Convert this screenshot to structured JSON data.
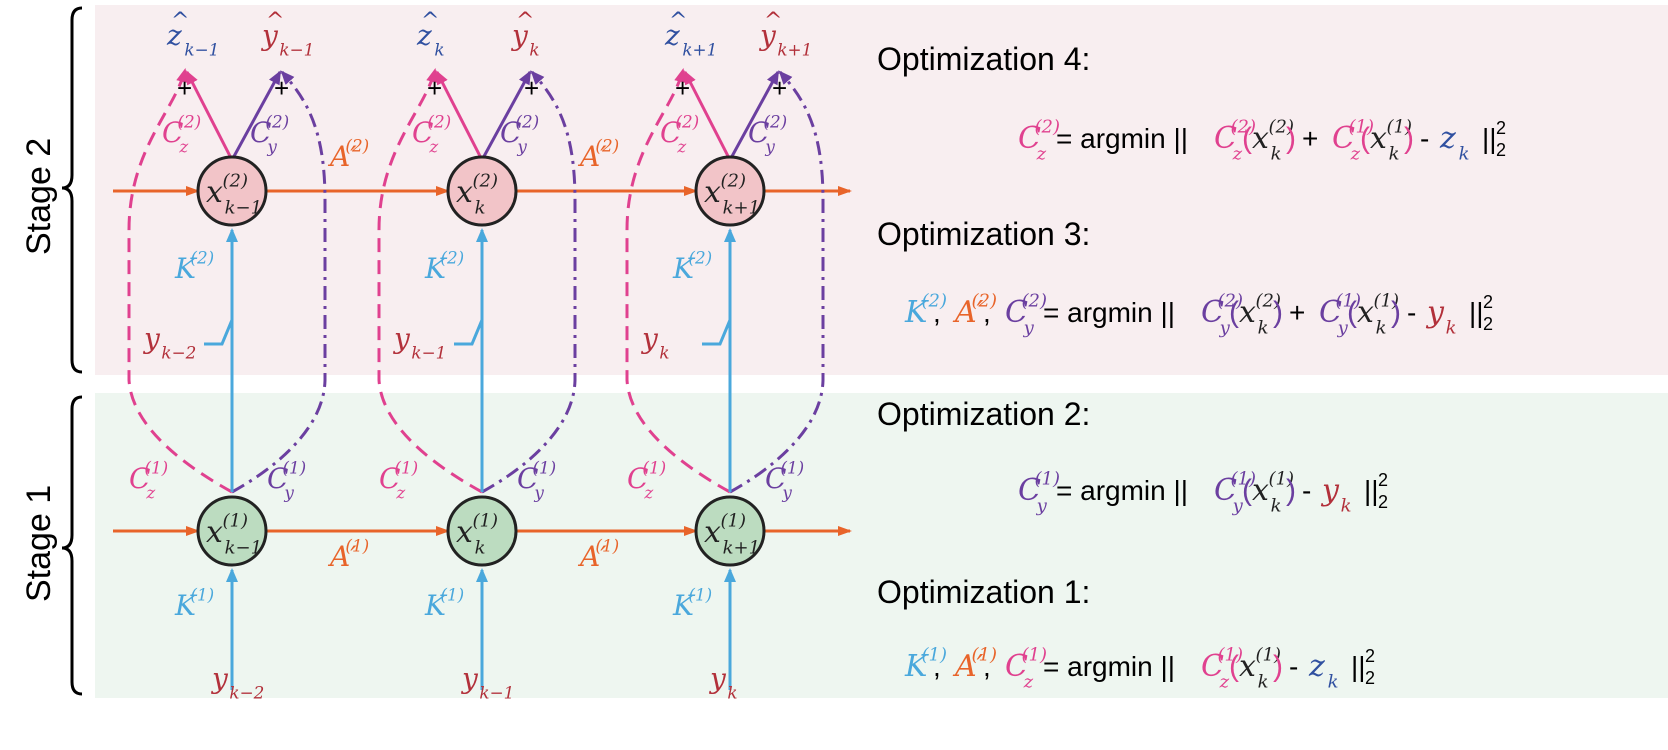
{
  "colors": {
    "pink": "#e0418f",
    "purple": "#6b3fa0",
    "blue": "#4aa8dc",
    "orange": "#e8642a",
    "red": "#b2303a",
    "navy": "#3050a0",
    "node_stage2": "#f2c4c8",
    "node_stage1": "#bcdcc0",
    "bg_stage2": "#f8eef0",
    "bg_stage1": "#eef6f0"
  },
  "stages": {
    "stage2": "Stage 2",
    "stage1": "Stage 1"
  },
  "columns": [
    {
      "sub": "k−1",
      "out_z": "z",
      "out_z_sub": "k−1",
      "out_y": "y",
      "out_y_sub": "k−1",
      "stage2_input": "y",
      "stage2_input_sub": "k−2",
      "stage1_input": "y",
      "stage1_input_sub": "k−2"
    },
    {
      "sub": "k",
      "out_z": "z",
      "out_z_sub": "k",
      "out_y": "y",
      "out_y_sub": "k",
      "stage2_input": "y",
      "stage2_input_sub": "k−1",
      "stage1_input": "y",
      "stage1_input_sub": "k−1"
    },
    {
      "sub": "k+1",
      "out_z": "z",
      "out_z_sub": "k+1",
      "out_y": "y",
      "out_y_sub": "k+1",
      "stage2_input": "y",
      "stage2_input_sub": "k",
      "stage1_input": "y",
      "stage1_input_sub": "k"
    }
  ],
  "symbols": {
    "state": "x",
    "sup2": "(2)",
    "sup1": "(1)",
    "Cz": "C",
    "Cy": "C",
    "K": "K",
    "A": "A′",
    "z_sub": "z",
    "y_sub": "y",
    "plus": "+",
    "hat": "^"
  },
  "optimizations": [
    {
      "title": "Optimization 4:",
      "lhs": [
        {
          "t": "C",
          "sub": "z",
          "sup": "(2)",
          "c": "pink"
        }
      ],
      "rhs": "= argmin || C_z^(2)(x_k^(2)) + C_z^(1)(x_k^(1)) - z_k ||_2^2"
    },
    {
      "title": "Optimization 3:",
      "lhs": [
        {
          "t": "K",
          "sup": "(2)",
          "c": "blue"
        },
        {
          "t": "A′",
          "sup": "(2)",
          "c": "orange"
        },
        {
          "t": "C",
          "sub": "y",
          "sup": "(2)",
          "c": "purple"
        }
      ],
      "rhs": "= argmin || C_y^(2)(x_k^(2)) + C_y^(1)(x_k^(1)) - y_k ||_2^2"
    },
    {
      "title": "Optimization 2:",
      "lhs": [
        {
          "t": "C",
          "sub": "y",
          "sup": "(1)",
          "c": "purple"
        }
      ],
      "rhs": "= argmin || C_y^(1)(x_k^(1)) - y_k ||_2^2"
    },
    {
      "title": "Optimization 1:",
      "lhs": [
        {
          "t": "K",
          "sup": "(1)",
          "c": "blue"
        },
        {
          "t": "A′",
          "sup": "(1)",
          "c": "orange"
        },
        {
          "t": "C",
          "sub": "z",
          "sup": "(1)",
          "c": "pink"
        }
      ],
      "rhs": "= argmin || C_z^(1)(x_k^(1)) - z_k ||_2^2"
    }
  ],
  "eqn_text": {
    "argmin": "= argmin ||",
    "plus": "+",
    "minus": "-",
    "norm_close": "||",
    "norm_sub": "2",
    "norm_sup": "2",
    "open_paren": "(",
    "close_paren": ")",
    "k": "k",
    "y": "y",
    "z": "z",
    "comma": ","
  }
}
